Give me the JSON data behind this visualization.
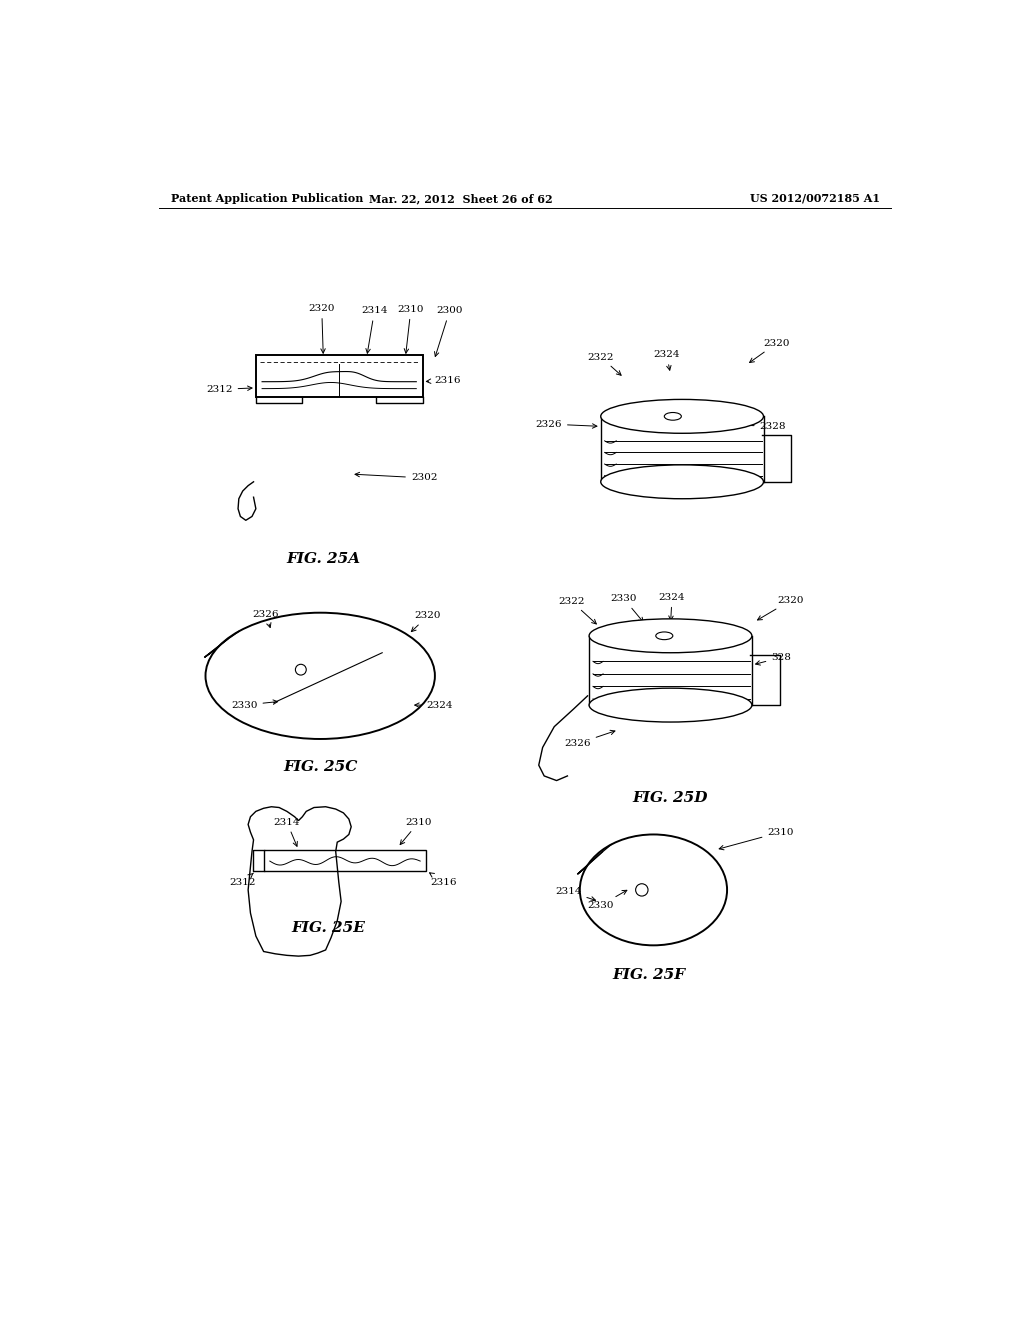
{
  "bg_color": "#ffffff",
  "header_left": "Patent Application Publication",
  "header_mid": "Mar. 22, 2012  Sheet 26 of 62",
  "header_right": "US 2012/0072185 A1",
  "line_color": "#000000",
  "lw": 1.0,
  "lw_thick": 1.4,
  "fs_label": 7.5,
  "fs_fig": 11,
  "fs_header": 8
}
